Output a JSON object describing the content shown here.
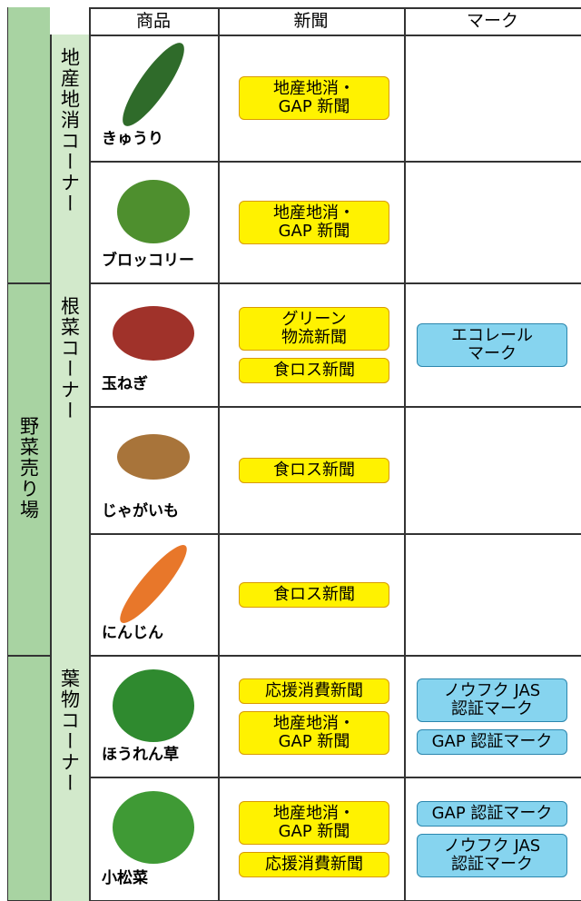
{
  "header": {
    "columns": [
      "商品",
      "新聞",
      "マーク"
    ]
  },
  "area": "野菜売り場",
  "sections": [
    {
      "name": "地産地消コーナー",
      "items": [
        {
          "product": "きゅうり",
          "newspapers": [
            "地産地消・\nGAP 新聞"
          ],
          "marks": []
        },
        {
          "product": "ブロッコリー",
          "newspapers": [
            "地産地消・\nGAP 新聞"
          ],
          "marks": []
        }
      ]
    },
    {
      "name": "根菜コーナー",
      "items": [
        {
          "product": "玉ねぎ",
          "newspapers": [
            "グリーン\n物流新聞",
            "食ロス新聞"
          ],
          "marks": [
            "エコレール\nマーク"
          ]
        },
        {
          "product": "じゃがいも",
          "newspapers": [
            "食ロス新聞"
          ],
          "marks": []
        },
        {
          "product": "にんじん",
          "newspapers": [
            "食ロス新聞"
          ],
          "marks": []
        }
      ]
    },
    {
      "name": "葉物コーナー",
      "items": [
        {
          "product": "ほうれん草",
          "newspapers": [
            "応援消費新聞",
            "地産地消・\nGAP 新聞"
          ],
          "marks": [
            "ノウフク JAS\n認証マーク",
            "GAP 認証マーク"
          ]
        },
        {
          "product": "小松菜",
          "newspapers": [
            "地産地消・\nGAP 新聞",
            "応援消費新聞"
          ],
          "marks": [
            "GAP 認証マーク",
            "ノウフク JAS\n認証マーク"
          ]
        }
      ]
    }
  ]
}
